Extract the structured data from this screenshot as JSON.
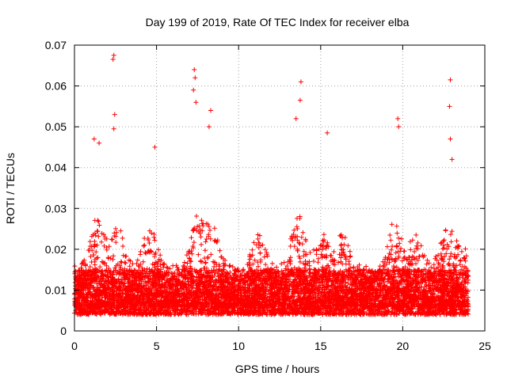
{
  "chart_data": {
    "type": "scatter",
    "title": "Day 199 of 2019, Rate Of TEC Index for receiver elba",
    "xlabel": "GPS time / hours",
    "ylabel": "ROTI / TECUs",
    "xlim": [
      0,
      25
    ],
    "ylim": [
      0,
      0.07
    ],
    "grid": true,
    "marker": "+",
    "color": "#ff0000",
    "x_ticks": [
      0,
      5,
      10,
      15,
      20,
      25
    ],
    "x_tick_labels": [
      "0",
      "5",
      "10",
      "15",
      "20",
      "25"
    ],
    "y_ticks": [
      0,
      0.01,
      0.02,
      0.03,
      0.04,
      0.05,
      0.06,
      0.07
    ],
    "y_tick_labels": [
      "0",
      "0.01",
      "0.02",
      "0.03",
      "0.04",
      "0.05",
      "0.06",
      "0.07"
    ],
    "data_coverage_hours": [
      0,
      24
    ],
    "baseline_band": [
      0.004,
      0.015
    ],
    "spikes": [
      {
        "x": 2.4,
        "y": 0.0675
      },
      {
        "x": 2.35,
        "y": 0.0665
      },
      {
        "x": 2.45,
        "y": 0.053
      },
      {
        "x": 2.4,
        "y": 0.0495
      },
      {
        "x": 1.2,
        "y": 0.047
      },
      {
        "x": 1.5,
        "y": 0.046
      },
      {
        "x": 4.9,
        "y": 0.045
      },
      {
        "x": 7.3,
        "y": 0.064
      },
      {
        "x": 7.35,
        "y": 0.062
      },
      {
        "x": 7.25,
        "y": 0.059
      },
      {
        "x": 7.4,
        "y": 0.056
      },
      {
        "x": 8.3,
        "y": 0.054
      },
      {
        "x": 8.2,
        "y": 0.05
      },
      {
        "x": 13.8,
        "y": 0.061
      },
      {
        "x": 13.75,
        "y": 0.0565
      },
      {
        "x": 13.5,
        "y": 0.052
      },
      {
        "x": 15.4,
        "y": 0.0485
      },
      {
        "x": 19.7,
        "y": 0.052
      },
      {
        "x": 19.75,
        "y": 0.05
      },
      {
        "x": 22.9,
        "y": 0.0615
      },
      {
        "x": 22.85,
        "y": 0.055
      },
      {
        "x": 22.9,
        "y": 0.047
      },
      {
        "x": 23.0,
        "y": 0.042
      }
    ]
  }
}
